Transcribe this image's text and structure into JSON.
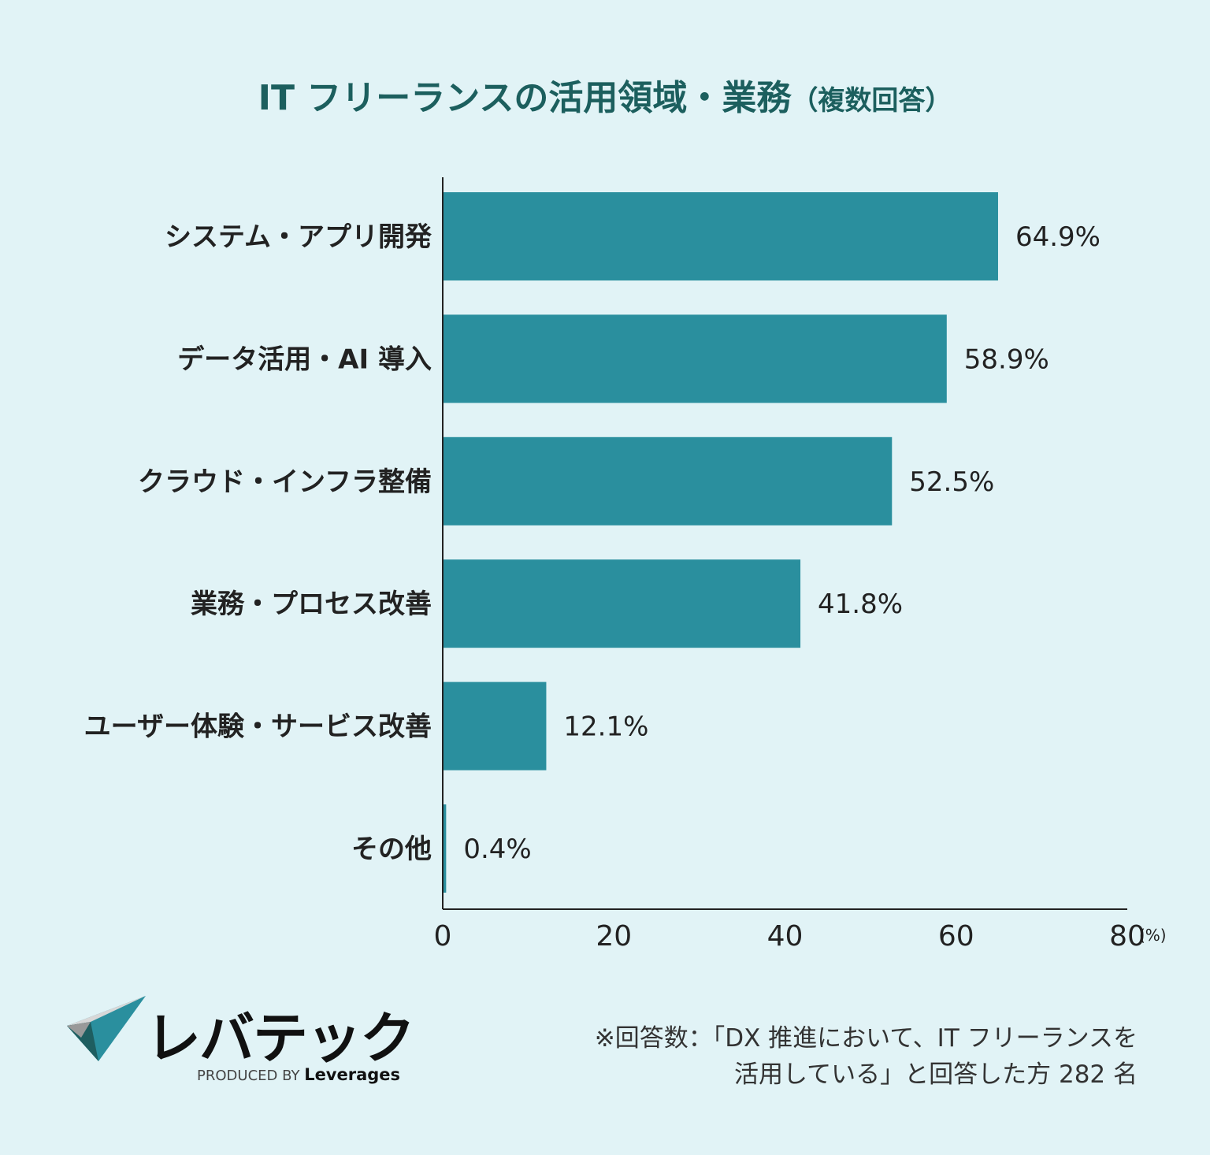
{
  "chart_data": {
    "type": "bar",
    "orientation": "horizontal",
    "title": "IT フリーランスの活用領域・業務",
    "subtitle": "（複数回答）",
    "categories": [
      "システム・アプリ開発",
      "データ活用・AI 導入",
      "クラウド・インフラ整備",
      "業務・プロセス改善",
      "ユーザー体験・サービス改善",
      "その他"
    ],
    "values": [
      64.9,
      58.9,
      52.5,
      41.8,
      12.1,
      0.4
    ],
    "data_labels": [
      "64.9%",
      "58.9%",
      "52.5%",
      "41.8%",
      "12.1%",
      "0.4%"
    ],
    "xlim": [
      0,
      80
    ],
    "xticks": [
      "0",
      "20",
      "40",
      "60",
      "80"
    ],
    "xunit": "(%)",
    "grid": false,
    "bar_color": "#2a8f9e",
    "background": "#e1f3f6",
    "title_color": "#1c5f5e"
  },
  "logo": {
    "name": "レバテック",
    "produced_by": "PRODUCED BY",
    "brand": "Leverages"
  },
  "note": {
    "line1": "※回答数：「DX 推進において、IT フリーランスを",
    "line2": "活用している」と回答した方 282 名"
  }
}
